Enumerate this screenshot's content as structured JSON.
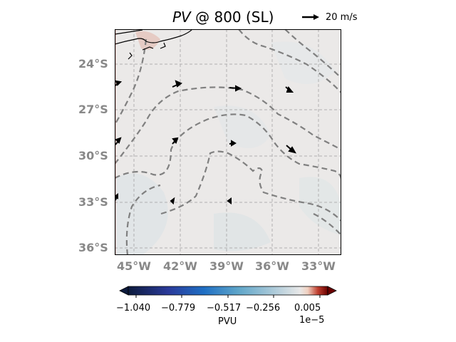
{
  "title": {
    "variable": "PV",
    "rest": " @ 800 (SL)"
  },
  "reference_vector": {
    "label": "20 m/s"
  },
  "map": {
    "lat_ticks": [
      "24°S",
      "27°S",
      "30°S",
      "33°S",
      "36°S"
    ],
    "lon_ticks": [
      "45°W",
      "42°W",
      "39°W",
      "36°W",
      "33°W"
    ],
    "gridlines": true
  },
  "colorbar": {
    "label": "PVU",
    "exponent": "1e−5",
    "ticks": [
      "−1.040",
      "−0.779",
      "−0.517",
      "−0.256",
      "0.005"
    ],
    "colors": {
      "low": "#0d1b3d",
      "mid_blue": "#1f6fc4",
      "light": "#a8c8d8",
      "neutral": "#e8e8e8",
      "high": "#6b0000"
    }
  }
}
